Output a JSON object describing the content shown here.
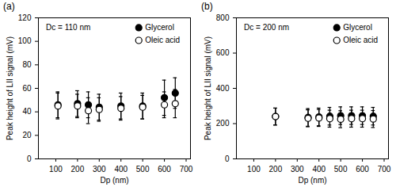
{
  "chart_data": [
    {
      "type": "scatter",
      "title": "(a)",
      "annotation": "Dc = 110 nm",
      "x_label": "Dp (nm)",
      "y_label": "Peak height of LII signal (mV)",
      "xlim": [
        20,
        720
      ],
      "xticks": [
        100,
        200,
        300,
        400,
        500,
        600,
        700
      ],
      "ylim": [
        0,
        120
      ],
      "yticks": [
        0,
        20,
        40,
        60,
        80,
        100,
        120
      ],
      "legend": "top-right",
      "x": [
        110,
        200,
        250,
        300,
        400,
        500,
        600,
        650
      ],
      "series": [
        {
          "name": "Glycerol",
          "color": "#000000",
          "marker": "circle",
          "values": [
            46,
            47,
            46,
            44,
            45,
            45,
            52,
            56
          ],
          "errors": [
            11,
            11,
            11,
            11,
            11,
            11,
            15,
            13
          ]
        },
        {
          "name": "Oleic acid",
          "color": "#000000",
          "marker": "open_circle",
          "values": [
            45,
            45,
            41,
            42,
            43,
            44,
            46,
            47
          ],
          "errors": [
            11,
            10,
            11,
            10,
            10,
            10,
            11,
            12
          ]
        }
      ]
    },
    {
      "type": "scatter",
      "title": "(b)",
      "annotation": "Dc = 200 nm",
      "x_label": "Dp (nm)",
      "y_label": "Peak height of LII signal (mV)",
      "xlim": [
        20,
        720
      ],
      "xticks": [
        100,
        200,
        300,
        400,
        500,
        600,
        700
      ],
      "ylim": [
        0,
        800
      ],
      "yticks": [
        0,
        200,
        400,
        600,
        800
      ],
      "legend": "top-right",
      "x": [
        200,
        350,
        400,
        450,
        500,
        550,
        600,
        650
      ],
      "series": [
        {
          "name": "Glycerol",
          "color": "#000000",
          "marker": "circle",
          "values": [
            240,
            235,
            238,
            242,
            245,
            245,
            245,
            242
          ],
          "errors": [
            48,
            50,
            50,
            50,
            50,
            50,
            50,
            50
          ]
        },
        {
          "name": "Oleic acid",
          "color": "#000000",
          "marker": "open_circle",
          "values": [
            240,
            230,
            232,
            228,
            225,
            228,
            228,
            226
          ],
          "errors": [
            48,
            48,
            48,
            48,
            48,
            48,
            48,
            48
          ]
        }
      ]
    }
  ]
}
